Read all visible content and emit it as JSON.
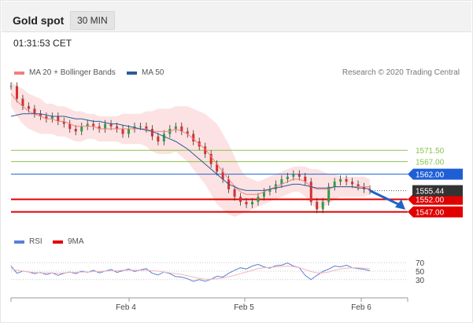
{
  "header": {
    "title": "Gold spot",
    "timeframe": "30 MIN"
  },
  "timestamp": "01:31:53 CET",
  "legend": {
    "ma20_label": "MA 20 + Bollinger Bands",
    "ma50_label": "MA 50",
    "rsi_label": "RSI",
    "ma9_label": "9MA"
  },
  "credit": "Research © 2020 Trading Central",
  "colors": {
    "ma20": "#f08080",
    "ma50": "#2a5b9a",
    "bollinger_fill": "#fbd8d8",
    "resistance": "#8bc34a",
    "level_blue": "#1f5fd6",
    "support": "#e00000",
    "price_tag": "#333333",
    "arrow": "#1f63c6",
    "rsi": "#5b7fd6"
  },
  "chart_data": {
    "type": "line",
    "y_axis_side": "right",
    "price_range": [
      1540,
      1600
    ],
    "x_ticks": [
      "Feb 4",
      "Feb 5",
      "Feb 6"
    ],
    "levels": [
      {
        "value": "1571.50",
        "num": 1571.5,
        "kind": "resistance"
      },
      {
        "value": "1567.00",
        "num": 1567.0,
        "kind": "resistance"
      },
      {
        "value": "1562.00",
        "num": 1562.0,
        "kind": "pivot"
      },
      {
        "value": "1552.00",
        "num": 1552.0,
        "kind": "support"
      },
      {
        "value": "1547.00",
        "num": 1547.0,
        "kind": "support"
      }
    ],
    "last_price": {
      "value": "1555.44",
      "num": 1555.44
    },
    "forecast_arrow": {
      "from": 1555.44,
      "to": 1548.5
    },
    "price_series": [
      1597,
      1592,
      1589,
      1588,
      1586,
      1585,
      1584,
      1585,
      1583,
      1582,
      1580,
      1579,
      1581,
      1582,
      1581,
      1580,
      1582,
      1581,
      1580,
      1578,
      1580,
      1581,
      1581,
      1580,
      1577,
      1575,
      1578,
      1580,
      1581,
      1579,
      1578,
      1575,
      1573,
      1570,
      1566,
      1563,
      1560,
      1556,
      1553,
      1551,
      1550,
      1551,
      1553,
      1555,
      1556,
      1558,
      1560,
      1561,
      1562,
      1561,
      1559,
      1551,
      1548,
      1551,
      1557,
      1559,
      1560,
      1559,
      1558,
      1557,
      1556,
      1555.4
    ],
    "ma20_series": [
      1594,
      1591,
      1589,
      1587,
      1586,
      1585,
      1584,
      1584,
      1583,
      1583,
      1582,
      1581,
      1581,
      1581,
      1581,
      1580,
      1580,
      1580,
      1580,
      1580,
      1580,
      1580,
      1580,
      1580,
      1579,
      1579,
      1579,
      1579,
      1580,
      1579,
      1578,
      1576,
      1574,
      1572,
      1569,
      1566,
      1563,
      1560,
      1557,
      1555,
      1554,
      1554,
      1554,
      1555,
      1556,
      1557,
      1558,
      1559,
      1560,
      1560,
      1559,
      1557,
      1556,
      1556,
      1556,
      1557,
      1557,
      1557,
      1557,
      1557,
      1557,
      1557
    ],
    "ma50_series": [
      1585,
      1585.5,
      1586,
      1586,
      1586,
      1586,
      1585.5,
      1585,
      1585,
      1585,
      1584.5,
      1584,
      1584,
      1583.5,
      1583,
      1583,
      1582.5,
      1582,
      1582,
      1581.5,
      1581,
      1580.5,
      1580,
      1579.5,
      1579,
      1578,
      1577,
      1576,
      1575,
      1573.5,
      1572,
      1570,
      1568,
      1566,
      1564,
      1562,
      1560,
      1558,
      1557,
      1556,
      1555.5,
      1555.5,
      1555.5,
      1555.5,
      1556,
      1556.5,
      1557,
      1557.5,
      1558,
      1558,
      1557.5,
      1557,
      1556.5,
      1556.5,
      1556.5,
      1557,
      1557,
      1557,
      1557,
      1556.5,
      1556.5,
      1556
    ],
    "band_width": [
      5,
      6,
      7,
      7,
      7,
      7,
      6,
      6,
      6,
      6,
      6,
      6,
      6,
      5,
      5,
      5,
      5,
      5,
      5,
      6,
      6,
      6,
      6,
      7,
      8,
      9,
      9,
      9,
      9,
      10,
      11,
      12,
      13,
      14,
      15,
      16,
      15,
      14,
      12,
      9,
      7,
      6,
      5,
      5,
      5,
      5,
      5,
      5,
      5,
      5,
      6,
      7,
      8,
      7,
      6,
      5,
      4,
      4,
      4,
      4,
      4,
      3
    ],
    "rsi": {
      "ticks": [
        "70",
        "50",
        "30"
      ],
      "tick_values": [
        70,
        50,
        30
      ],
      "series": [
        62,
        45,
        50,
        48,
        44,
        47,
        42,
        46,
        40,
        45,
        48,
        44,
        50,
        47,
        52,
        46,
        50,
        54,
        47,
        51,
        55,
        49,
        53,
        56,
        45,
        41,
        48,
        44,
        37,
        36,
        32,
        26,
        30,
        26,
        31,
        38,
        36,
        45,
        52,
        58,
        55,
        62,
        66,
        60,
        57,
        63,
        64,
        69,
        62,
        58,
        40,
        30,
        40,
        49,
        55,
        62,
        60,
        64,
        58,
        56,
        54,
        51
      ],
      "ma9": [
        56,
        52,
        50,
        48,
        47,
        46,
        46,
        46,
        45,
        46,
        47,
        47,
        48,
        48,
        49,
        49,
        50,
        51,
        51,
        52,
        52,
        52,
        52,
        52,
        51,
        50,
        48,
        46,
        44,
        42,
        39,
        36,
        33,
        31,
        31,
        32,
        34,
        37,
        40,
        44,
        48,
        52,
        56,
        58,
        59,
        60,
        61,
        62,
        61,
        58,
        54,
        49,
        46,
        46,
        48,
        52,
        55,
        57,
        58,
        58,
        57,
        56
      ]
    }
  }
}
